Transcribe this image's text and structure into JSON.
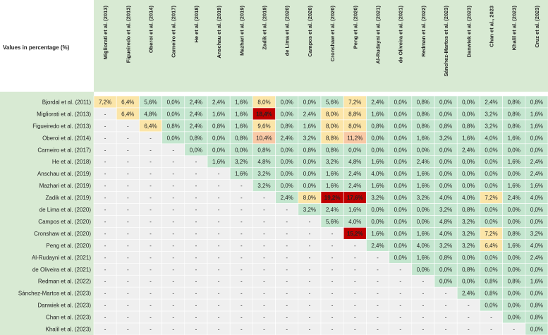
{
  "chart_data": {
    "type": "heatmap",
    "corner_label": "Values in percentage (%)",
    "columns": [
      "Migliorati et al. (2013)",
      "Figueiredo et al. (2013)",
      "Oberoi et al. (2014)",
      "Carneiro et al. (2017)",
      "He et al. (2018)",
      "Anschau et al. (2019)",
      "Mazhari et al. (2019)",
      "Zadik et al. (2019)",
      "de Lima et al. (2020)",
      "Campos et al. (2020)",
      "Cronshaw et al. (2020)",
      "Peng et al. (2020)",
      "Al-Rudayni et al. (2021)",
      "de Oliveira et al. (2021)",
      "Redman et al. (2022)",
      "Sánchez-Martos et al. (2023)",
      "Danwiek et al. (2023)",
      "Chan et al., 2023",
      "Khalil et al. (2023)",
      "Cruz et al. (2023)"
    ],
    "rows": [
      {
        "label": "Bjordal et al. (2011)",
        "cells": [
          "7,2%",
          "6,4%",
          "5,6%",
          "0,0%",
          "2,4%",
          "2,4%",
          "1,6%",
          "8,0%",
          "0,0%",
          "0,0%",
          "5,6%",
          "7,2%",
          "2,4%",
          "0,0%",
          "0,8%",
          "0,0%",
          "0,0%",
          "2,4%",
          "0,8%",
          "0,8%"
        ]
      },
      {
        "label": "Migliorati et al. (2013)",
        "cells": [
          "-",
          "6,4%",
          "4,8%",
          "0,0%",
          "2,4%",
          "1,6%",
          "1,6%",
          "18,4%",
          "0,0%",
          "2,4%",
          "8,0%",
          "8,8%",
          "1,6%",
          "0,0%",
          "0,8%",
          "0,0%",
          "0,0%",
          "3,2%",
          "0,8%",
          "1,6%"
        ]
      },
      {
        "label": "Figueiredo et al. (2013)",
        "cells": [
          "-",
          "-",
          "6,4%",
          "0,8%",
          "2,4%",
          "0,8%",
          "1,6%",
          "9,6%",
          "0,8%",
          "1,6%",
          "8,0%",
          "8,0%",
          "0,8%",
          "0,0%",
          "0,8%",
          "0,8%",
          "0,8%",
          "3,2%",
          "0,8%",
          "1,6%"
        ]
      },
      {
        "label": "Oberoi et al. (2014)",
        "cells": [
          "-",
          "-",
          "-",
          "0,0%",
          "0,8%",
          "0,0%",
          "0,8%",
          "10,4%",
          "2,4%",
          "3,2%",
          "8,8%",
          "11,2%",
          "0,0%",
          "0,0%",
          "1,6%",
          "3,2%",
          "1,6%",
          "4,0%",
          "1,6%",
          "0,0%"
        ]
      },
      {
        "label": "Carneiro et al. (2017)",
        "cells": [
          "-",
          "-",
          "-",
          "-",
          "0,0%",
          "0,0%",
          "0,0%",
          "0,8%",
          "0,0%",
          "0,8%",
          "0,8%",
          "0,0%",
          "0,0%",
          "0,0%",
          "0,0%",
          "0,0%",
          "2,4%",
          "0,0%",
          "0,0%",
          "0,0%"
        ]
      },
      {
        "label": "He et al. (2018)",
        "cells": [
          "-",
          "-",
          "-",
          "-",
          "-",
          "1,6%",
          "3,2%",
          "4,8%",
          "0,0%",
          "0,0%",
          "3,2%",
          "4,8%",
          "1,6%",
          "0,0%",
          "2,4%",
          "0,0%",
          "0,0%",
          "0,0%",
          "1,6%",
          "2,4%"
        ]
      },
      {
        "label": "Anschau et al. (2019)",
        "cells": [
          "-",
          "-",
          "-",
          "-",
          "-",
          "-",
          "1,6%",
          "3,2%",
          "0,0%",
          "0,0%",
          "1,6%",
          "2,4%",
          "4,0%",
          "0,0%",
          "1,6%",
          "0,0%",
          "0,0%",
          "0,0%",
          "0,0%",
          "2,4%"
        ]
      },
      {
        "label": "Mazhari et al. (2019)",
        "cells": [
          "-",
          "-",
          "-",
          "-",
          "-",
          "-",
          "-",
          "3,2%",
          "0,0%",
          "0,0%",
          "1,6%",
          "2,4%",
          "1,6%",
          "0,0%",
          "1,6%",
          "0,0%",
          "0,0%",
          "0,0%",
          "1,6%",
          "1,6%"
        ]
      },
      {
        "label": "Zadik et al. (2019)",
        "cells": [
          "-",
          "-",
          "-",
          "-",
          "-",
          "-",
          "-",
          "-",
          "2,4%",
          "8,0%",
          "19,2%",
          "17,6%",
          "3,2%",
          "0,0%",
          "3,2%",
          "4,0%",
          "4,0%",
          "7,2%",
          "2,4%",
          "4,0%"
        ]
      },
      {
        "label": "de Lima et al. (2020)",
        "cells": [
          "-",
          "-",
          "-",
          "-",
          "-",
          "-",
          "-",
          "-",
          "-",
          "3,2%",
          "2,4%",
          "1,6%",
          "0,0%",
          "0,0%",
          "0,0%",
          "3,2%",
          "0,8%",
          "0,0%",
          "0,0%",
          "0,0%"
        ]
      },
      {
        "label": "Campos et al. (2020)",
        "cells": [
          "-",
          "-",
          "-",
          "-",
          "-",
          "-",
          "-",
          "-",
          "-",
          "-",
          "5,6%",
          "4,0%",
          "0,0%",
          "0,0%",
          "0,0%",
          "4,8%",
          "3,2%",
          "0,0%",
          "0,0%",
          "0,0%"
        ]
      },
      {
        "label": "Cronshaw et al. (2020)",
        "cells": [
          "-",
          "-",
          "-",
          "-",
          "-",
          "-",
          "-",
          "-",
          "-",
          "-",
          "-",
          "15,2%",
          "1,6%",
          "0,0%",
          "1,6%",
          "4,0%",
          "3,2%",
          "7,2%",
          "0,8%",
          "3,2%"
        ]
      },
      {
        "label": "Peng et al. (2020)",
        "cells": [
          "-",
          "-",
          "-",
          "-",
          "-",
          "-",
          "-",
          "-",
          "-",
          "-",
          "-",
          "-",
          "2,4%",
          "0,0%",
          "4,0%",
          "3,2%",
          "3,2%",
          "6,4%",
          "1,6%",
          "4,0%"
        ]
      },
      {
        "label": "Al-Rudayni et al. (2021)",
        "cells": [
          "-",
          "-",
          "-",
          "-",
          "-",
          "-",
          "-",
          "-",
          "-",
          "-",
          "-",
          "-",
          "-",
          "0,0%",
          "1,6%",
          "0,8%",
          "0,0%",
          "0,0%",
          "0,0%",
          "2,4%"
        ]
      },
      {
        "label": "de Oliveira et al. (2021)",
        "cells": [
          "-",
          "-",
          "-",
          "-",
          "-",
          "-",
          "-",
          "-",
          "-",
          "-",
          "-",
          "-",
          "-",
          "-",
          "0,0%",
          "0,0%",
          "0,8%",
          "0,0%",
          "0,0%",
          "0,0%"
        ]
      },
      {
        "label": "Redman et al. (2022)",
        "cells": [
          "-",
          "-",
          "-",
          "-",
          "-",
          "-",
          "-",
          "-",
          "-",
          "-",
          "-",
          "-",
          "-",
          "-",
          "-",
          "0,0%",
          "0,0%",
          "0,8%",
          "0,8%",
          "1,6%"
        ]
      },
      {
        "label": "Sánchez-Martos et al. (2023)",
        "cells": [
          "-",
          "-",
          "-",
          "-",
          "-",
          "-",
          "-",
          "-",
          "-",
          "-",
          "-",
          "-",
          "-",
          "-",
          "-",
          "-",
          "2,4%",
          "0,8%",
          "0,0%",
          "0,0%"
        ]
      },
      {
        "label": "Danwiek et al. (2023)",
        "cells": [
          "-",
          "-",
          "-",
          "-",
          "-",
          "-",
          "-",
          "-",
          "-",
          "-",
          "-",
          "-",
          "-",
          "-",
          "-",
          "-",
          "-",
          "0,0%",
          "0,0%",
          "0,8%"
        ]
      },
      {
        "label": "Chan et al. (2023)",
        "cells": [
          "-",
          "-",
          "-",
          "-",
          "-",
          "-",
          "-",
          "-",
          "-",
          "-",
          "-",
          "-",
          "-",
          "-",
          "-",
          "-",
          "-",
          "-",
          "0,0%",
          "0,8%"
        ]
      },
      {
        "label": "Khalil et al. (2023)",
        "cells": [
          "-",
          "-",
          "-",
          "-",
          "-",
          "-",
          "-",
          "-",
          "-",
          "-",
          "-",
          "-",
          "-",
          "-",
          "-",
          "-",
          "-",
          "-",
          "-",
          "0,0%"
        ]
      }
    ],
    "colors": {
      "header_bg": "#d8ead3",
      "low": "#c4e6cf",
      "mid": "#fbe5a8",
      "high": "#f8c9a6",
      "max": "#c00000",
      "empty": "#efefef",
      "border": "#ffffff"
    }
  }
}
